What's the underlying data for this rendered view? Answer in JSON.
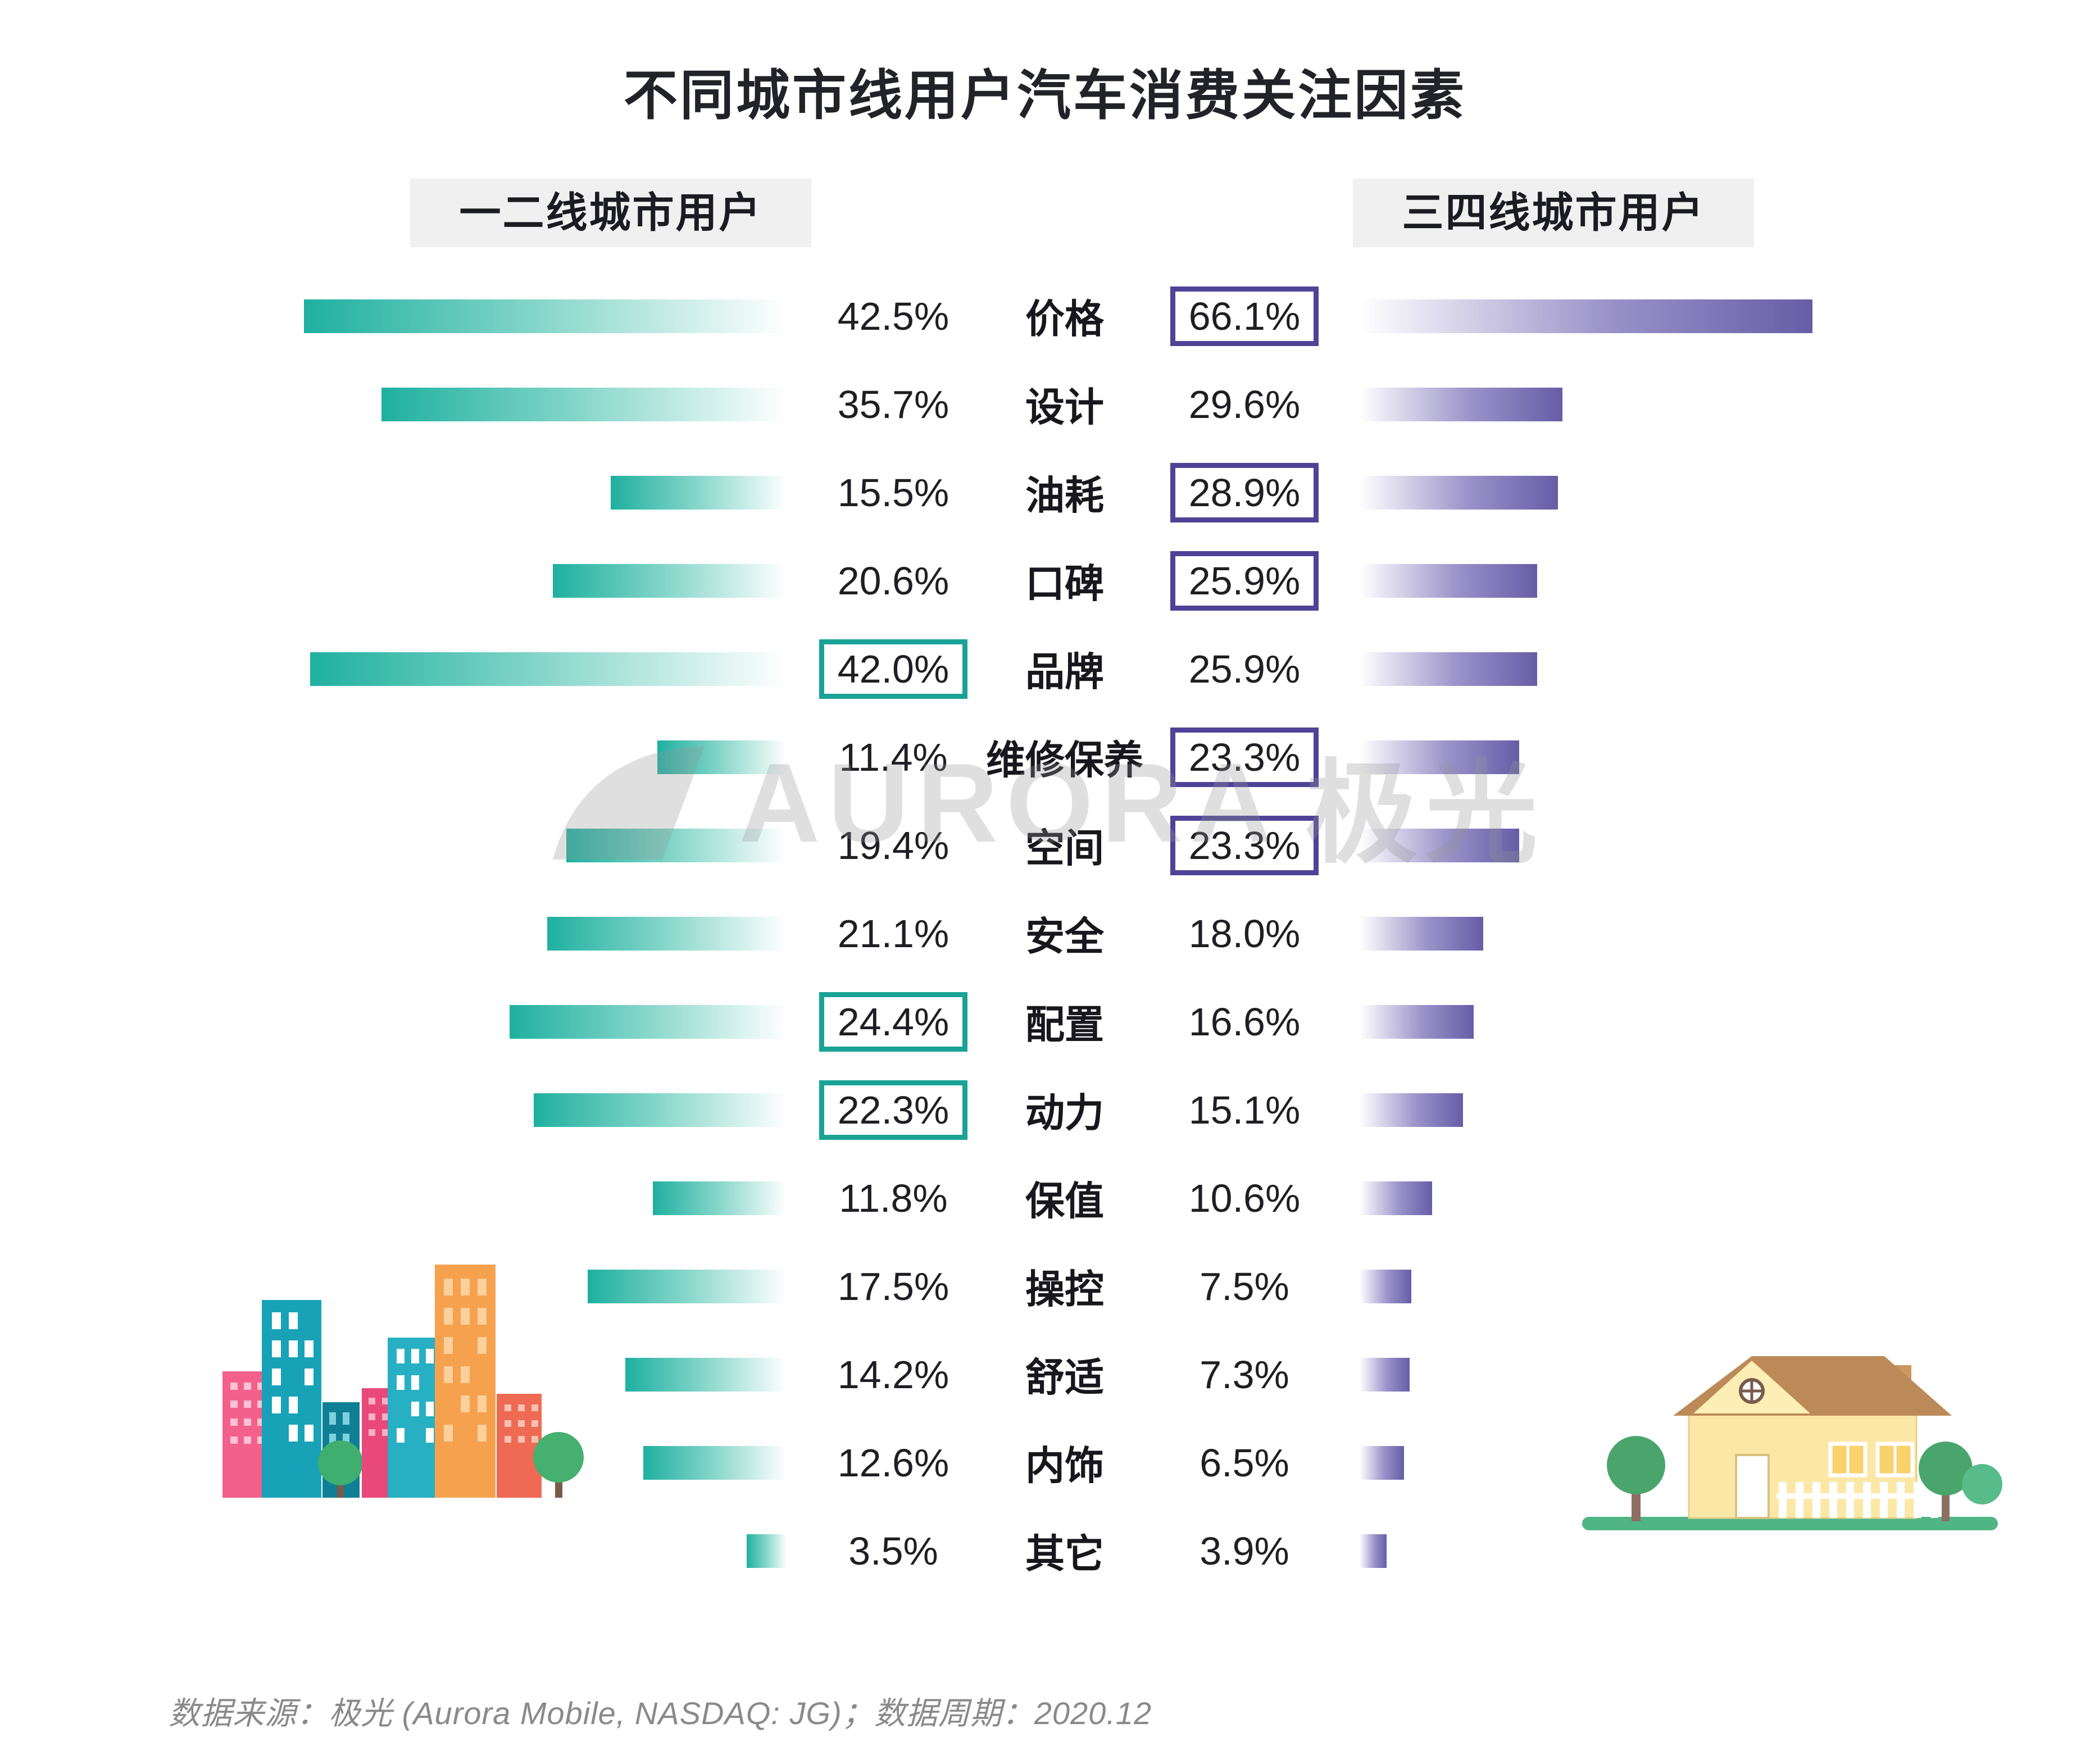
{
  "title": "不同城市线用户汽车消费关注因素",
  "watermark": {
    "logo": "aurora-swoosh",
    "text_en": "AURORA",
    "text_cn": "极光"
  },
  "footer": {
    "text": "数据来源：极光 (Aurora Mobile, NASDAQ: JG)；数据周期：2020.12"
  },
  "colors": {
    "tier12_bar": "#1fb0a0",
    "tier34_bar": "#675da7",
    "tier12_box_border": "#19a295",
    "tier34_box_border": "#4e4397",
    "header_chip_bg": "#f0f0f1",
    "title_text": "#222229",
    "footer_text": "#8a8a8a"
  },
  "chart_data": {
    "type": "bar",
    "variant": "diverging-tornado",
    "title": "不同城市线用户汽车消费关注因素",
    "value_format": "percent",
    "grid": false,
    "legend_position": "top",
    "categories": [
      "价格",
      "设计",
      "油耗",
      "口碑",
      "品牌",
      "维修保养",
      "空间",
      "安全",
      "配置",
      "动力",
      "保值",
      "操控",
      "舒适",
      "内饰",
      "其它"
    ],
    "series": [
      {
        "name": "一二线城市用户",
        "side": "left",
        "color": "#1fb0a0",
        "xlim": [
          0,
          45
        ],
        "values": [
          42.5,
          35.7,
          15.5,
          20.6,
          42.0,
          11.4,
          19.4,
          21.1,
          24.4,
          22.3,
          11.8,
          17.5,
          14.2,
          12.6,
          3.5
        ],
        "boxed_categories": [
          "品牌",
          "配置",
          "动力"
        ]
      },
      {
        "name": "三四线城市用户",
        "side": "right",
        "color": "#675da7",
        "xlim": [
          0,
          70
        ],
        "values": [
          66.1,
          29.6,
          28.9,
          25.9,
          25.9,
          23.3,
          23.3,
          18.0,
          16.6,
          15.1,
          10.6,
          7.5,
          7.3,
          6.5,
          3.9
        ],
        "boxed_categories": [
          "价格",
          "油耗",
          "口碑",
          "维修保养",
          "空间"
        ]
      }
    ]
  }
}
